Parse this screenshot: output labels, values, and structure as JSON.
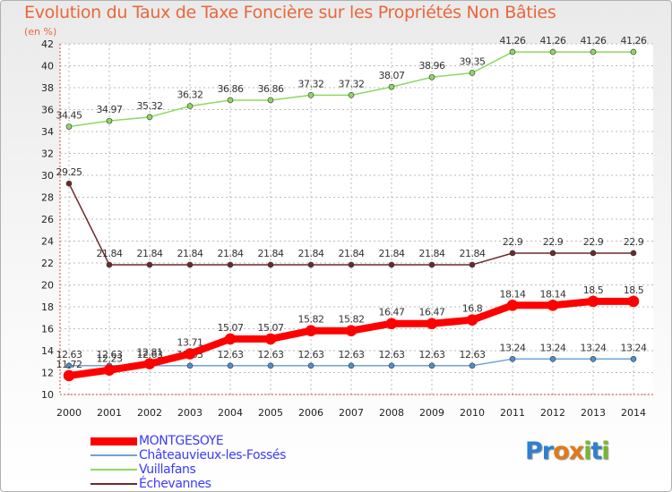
{
  "title": "Evolution du Taux de Taxe Foncière sur les Propriétés Non Bâties",
  "unit_label": "(en %)",
  "logo": {
    "letters": [
      "P",
      "r",
      "o",
      "x",
      "i",
      "t",
      "i"
    ],
    "colors": [
      "#2f7fd1",
      "#2f7fd1",
      "#e07a1a",
      "#e07a1a",
      "#7ab52e",
      "#2f7fd1",
      "#7ab52e"
    ]
  },
  "chart_data": {
    "type": "line",
    "x": [
      "2000",
      "2001",
      "2002",
      "2003",
      "2004",
      "2005",
      "2006",
      "2007",
      "2008",
      "2009",
      "2010",
      "2011",
      "2012",
      "2013",
      "2014"
    ],
    "ylim": [
      10,
      42
    ],
    "yticks": [
      10,
      12,
      14,
      16,
      18,
      20,
      22,
      24,
      26,
      28,
      30,
      32,
      34,
      36,
      38,
      40,
      42
    ],
    "grid": true,
    "legend_position": "bottom-left",
    "series": [
      {
        "name": "Vuillafans",
        "color": "#8dd860",
        "width": 1.5,
        "marker": "#8dd860",
        "values": [
          34.45,
          34.97,
          35.32,
          36.32,
          36.86,
          36.86,
          37.32,
          37.32,
          38.07,
          38.96,
          39.35,
          41.26,
          41.26,
          41.26,
          41.26
        ],
        "labels": [
          "34.45",
          "34.97",
          "35.32",
          "36.32",
          "36.86",
          "36.86",
          "37.32",
          "37.32",
          "38.07",
          "38.96",
          "39.35",
          "41.26",
          "41.26",
          "41.26",
          "41.26"
        ]
      },
      {
        "name": "Échevannes",
        "color": "#6b2a2a",
        "width": 1.5,
        "marker": "#6b2a2a",
        "values": [
          29.25,
          21.84,
          21.84,
          21.84,
          21.84,
          21.84,
          21.84,
          21.84,
          21.84,
          21.84,
          21.84,
          22.9,
          22.9,
          22.9,
          22.9
        ],
        "labels": [
          "29.25",
          "21.84",
          "21.84",
          "21.84",
          "21.84",
          "21.84",
          "21.84",
          "21.84",
          "21.84",
          "21.84",
          "21.84",
          "22.9",
          "22.9",
          "22.9",
          "22.9"
        ]
      },
      {
        "name": "Châteauvieux-les-Fossés",
        "color": "#6fa3d6",
        "width": 1.5,
        "marker": "#4f8fcf",
        "values": [
          12.63,
          12.63,
          12.63,
          12.63,
          12.63,
          12.63,
          12.63,
          12.63,
          12.63,
          12.63,
          12.63,
          13.24,
          13.24,
          13.24,
          13.24
        ],
        "labels": [
          "12.63",
          "12.63",
          "12.63",
          "12.63",
          "12.63",
          "12.63",
          "12.63",
          "12.63",
          "12.63",
          "12.63",
          "12.63",
          "13.24",
          "13.24",
          "13.24",
          "13.24"
        ]
      },
      {
        "name": "MONTGESOYE",
        "color": "#ff0000",
        "width": 8,
        "marker": "#ff0000",
        "values": [
          11.72,
          12.23,
          12.81,
          13.71,
          15.07,
          15.07,
          15.82,
          15.82,
          16.47,
          16.47,
          16.8,
          18.14,
          18.14,
          18.5,
          18.5
        ],
        "labels": [
          "11.72",
          "12.23",
          "12.81",
          "13.71",
          "15.07",
          "15.07",
          "15.82",
          "15.82",
          "16.47",
          "16.47",
          "16.8",
          "18.14",
          "18.14",
          "18.5",
          "18.5"
        ]
      }
    ],
    "legend_order": [
      "MONTGESOYE",
      "Châteauvieux-les-Fossés",
      "Vuillafans",
      "Échevannes"
    ]
  }
}
